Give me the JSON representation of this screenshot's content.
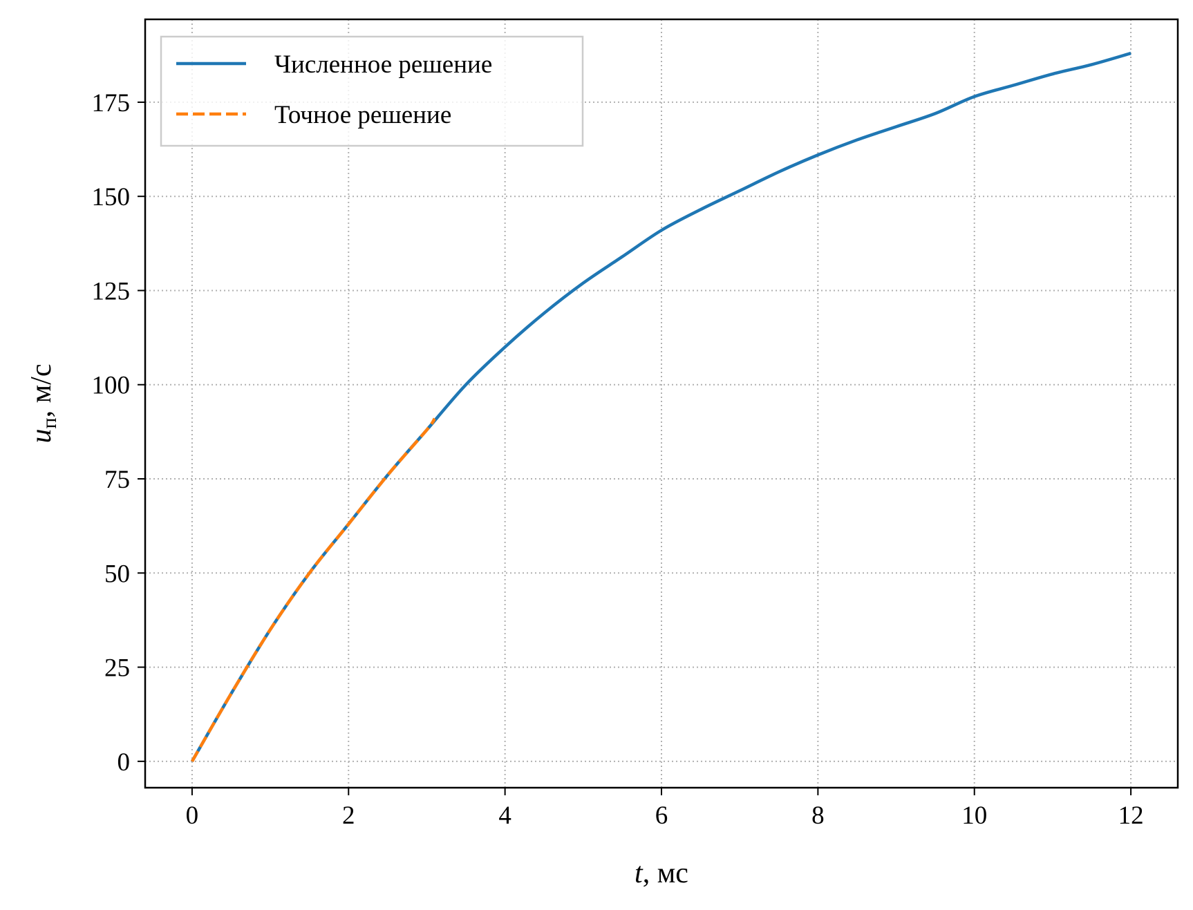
{
  "chart_data": {
    "type": "line",
    "title": "",
    "xlabel_var": "t",
    "xlabel_unit": ", мс",
    "ylabel_var": "u",
    "ylabel_sub": "п",
    "ylabel_unit": ", м/с",
    "xlim": [
      -0.6,
      12.6
    ],
    "ylim": [
      -7,
      197
    ],
    "xticks": [
      0,
      2,
      4,
      6,
      8,
      10,
      12
    ],
    "yticks": [
      0,
      25,
      50,
      75,
      100,
      125,
      150,
      175
    ],
    "xtick_labels": [
      "0",
      "2",
      "4",
      "6",
      "8",
      "10",
      "12"
    ],
    "ytick_labels": [
      "0",
      "25",
      "50",
      "75",
      "100",
      "125",
      "150",
      "175"
    ],
    "grid": true,
    "legend_position": "top-left",
    "series": [
      {
        "name": "Численное решение",
        "color": "#1f77b4",
        "style": "solid",
        "x": [
          0,
          0.5,
          1,
          1.5,
          2,
          2.5,
          3,
          3.5,
          4,
          4.5,
          5,
          5.5,
          6,
          6.5,
          7,
          7.5,
          8,
          8.5,
          9,
          9.5,
          10,
          10.5,
          11,
          11.5,
          12
        ],
        "y": [
          0,
          18,
          35,
          50,
          63,
          76,
          88,
          100,
          110,
          119,
          127,
          134,
          141,
          146.5,
          151.5,
          156.5,
          161,
          165,
          168.5,
          172,
          176.5,
          179.5,
          182.5,
          185,
          188
        ]
      },
      {
        "name": "Точное решение",
        "color": "#ff7f0e",
        "style": "dashed",
        "x": [
          0,
          0.5,
          1,
          1.5,
          2,
          2.5,
          3,
          3.1
        ],
        "y": [
          0,
          18,
          35,
          50,
          63,
          76,
          88,
          91
        ]
      }
    ]
  }
}
